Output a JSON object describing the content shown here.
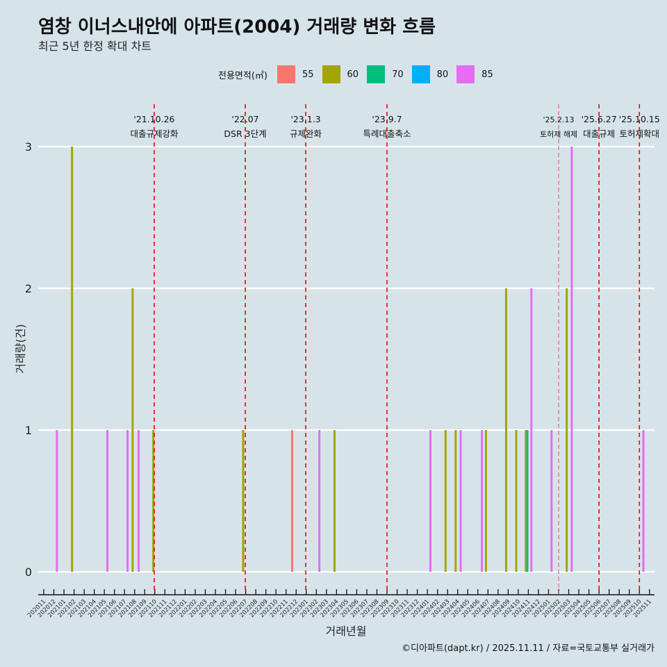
{
  "title": "염창 이너스내안에 아파트(2004) 거래량 변화 흐름",
  "subtitle": "최근 5년 한정 확대 차트",
  "caption": "©디아파트(dapt.kr) / 2025.11.11 / 자료=국토교통부 실거래가",
  "chart_data": {
    "type": "bar",
    "xlabel": "거래년월",
    "ylabel": "거래량(건)",
    "ylim": [
      0,
      3
    ],
    "yticks": [
      0,
      1,
      2,
      3
    ],
    "legend_title": "전용면적(㎡)",
    "legend": [
      {
        "name": "55",
        "color": "#f8766d"
      },
      {
        "name": "60",
        "color": "#a3a500"
      },
      {
        "name": "70",
        "color": "#00bf7d"
      },
      {
        "name": "80",
        "color": "#00b0f6"
      },
      {
        "name": "85",
        "color": "#e76bf3"
      }
    ],
    "categories": [
      "202011",
      "202012",
      "202101",
      "202102",
      "202103",
      "202104",
      "202105",
      "202106",
      "202107",
      "202108",
      "202109",
      "202110",
      "202111",
      "202112",
      "202201",
      "202202",
      "202203",
      "202204",
      "202205",
      "202206",
      "202207",
      "202208",
      "202209",
      "202210",
      "202211",
      "202212",
      "202301",
      "202302",
      "202303",
      "202304",
      "202305",
      "202306",
      "202307",
      "202308",
      "202309",
      "202310",
      "202311",
      "202312",
      "202401",
      "202402",
      "202403",
      "202404",
      "202405",
      "202406",
      "202407",
      "202408",
      "202409",
      "202410",
      "202411",
      "202412",
      "202501",
      "202502",
      "202503",
      "202504",
      "202505",
      "202506",
      "202507",
      "202508",
      "202509",
      "202510",
      "202511"
    ],
    "bars": [
      {
        "x": 1.3,
        "area": "85",
        "value": 1
      },
      {
        "x": 2.8,
        "area": "60",
        "value": 3
      },
      {
        "x": 6.3,
        "area": "85",
        "value": 1
      },
      {
        "x": 8.3,
        "area": "85",
        "value": 1
      },
      {
        "x": 8.8,
        "area": "60",
        "value": 2
      },
      {
        "x": 9.4,
        "area": "85",
        "value": 1
      },
      {
        "x": 10.85,
        "area": "60",
        "value": 1
      },
      {
        "x": 19.75,
        "area": "60",
        "value": 1
      },
      {
        "x": 24.6,
        "area": "55",
        "value": 1
      },
      {
        "x": 27.3,
        "area": "85",
        "value": 1
      },
      {
        "x": 28.8,
        "area": "60",
        "value": 1
      },
      {
        "x": 38.3,
        "area": "85",
        "value": 1
      },
      {
        "x": 39.8,
        "area": "60",
        "value": 1
      },
      {
        "x": 40.8,
        "area": "60",
        "value": 1
      },
      {
        "x": 41.3,
        "area": "85",
        "value": 1
      },
      {
        "x": 43.4,
        "area": "85",
        "value": 1
      },
      {
        "x": 43.8,
        "area": "60",
        "value": 1
      },
      {
        "x": 45.8,
        "area": "60",
        "value": 2
      },
      {
        "x": 46.8,
        "area": "60",
        "value": 1
      },
      {
        "x": 47.75,
        "area": "60",
        "value": 1
      },
      {
        "x": 47.9,
        "area": "70",
        "value": 1
      },
      {
        "x": 48.3,
        "area": "85",
        "value": 2
      },
      {
        "x": 50.3,
        "area": "85",
        "value": 1
      },
      {
        "x": 51.8,
        "area": "60",
        "value": 2
      },
      {
        "x": 52.3,
        "area": "85",
        "value": 3
      },
      {
        "x": 59.4,
        "area": "85",
        "value": 1
      }
    ],
    "events": [
      {
        "x": 10.94,
        "date": "'21.10.26",
        "label": "대출규제강화"
      },
      {
        "x": 19.96,
        "date": "'22.07",
        "label": "DSR 3단계"
      },
      {
        "x": 25.95,
        "date": "'23.1.3",
        "label": "규제완화"
      },
      {
        "x": 34.0,
        "date": "'23.9.7",
        "label": "특례대출축소"
      },
      {
        "x": 51.0,
        "date": "'25.2.13",
        "label": "토허제 해제",
        "minor": true
      },
      {
        "x": 55.0,
        "date": "'25.6.27",
        "label": "대출규제"
      },
      {
        "x": 59.0,
        "date": "'25.10.15",
        "label": "토허제확대"
      }
    ]
  }
}
